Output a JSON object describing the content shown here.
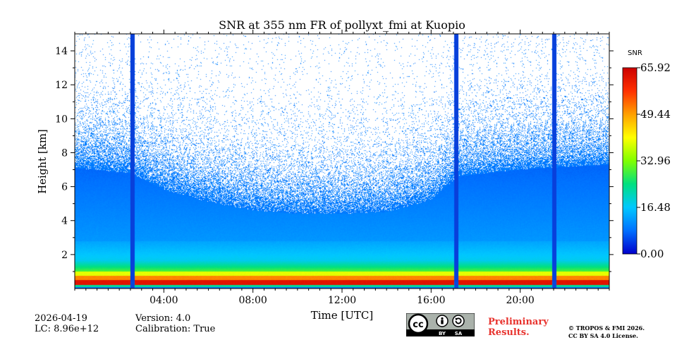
{
  "chart_data": {
    "type": "heatmap",
    "title": "SNR at 355 nm FR of pollyxt_fmi at Kuopio",
    "xlabel": "Time [UTC]",
    "ylabel": "Height [km]",
    "xlim_hours": [
      0,
      24
    ],
    "ylim_km": [
      0,
      15
    ],
    "x_ticks": [
      {
        "hour": 4,
        "label": "04:00"
      },
      {
        "hour": 8,
        "label": "08:00"
      },
      {
        "hour": 12,
        "label": "12:00"
      },
      {
        "hour": 16,
        "label": "16:00"
      },
      {
        "hour": 20,
        "label": "20:00"
      }
    ],
    "y_ticks": [
      {
        "value": 2,
        "label": "2"
      },
      {
        "value": 4,
        "label": "4"
      },
      {
        "value": 6,
        "label": "6"
      },
      {
        "value": 8,
        "label": "8"
      },
      {
        "value": 10,
        "label": "10"
      },
      {
        "value": 12,
        "label": "12"
      },
      {
        "value": 14,
        "label": "14"
      }
    ],
    "colorbar": {
      "label": "SNR",
      "min": 0.0,
      "max": 65.92,
      "ticks": [
        "0.00",
        "16.48",
        "32.96",
        "49.44",
        "65.92"
      ],
      "colors": [
        "#0000cc",
        "#0070ff",
        "#00c8ff",
        "#00e080",
        "#80ff00",
        "#ffff00",
        "#ffa000",
        "#ff3000",
        "#cc0000"
      ]
    },
    "gaps_hours": [
      {
        "start": 2.5,
        "end": 2.68
      },
      {
        "start": 17.05,
        "end": 17.22
      },
      {
        "start": 21.45,
        "end": 21.62
      }
    ],
    "signal_top_km": [
      {
        "hour": 0,
        "km": 8.3
      },
      {
        "hour": 2.5,
        "km": 8.0
      },
      {
        "hour": 4,
        "km": 7.0
      },
      {
        "hour": 6,
        "km": 6.3
      },
      {
        "hour": 8,
        "km": 5.8
      },
      {
        "hour": 10,
        "km": 5.6
      },
      {
        "hour": 12,
        "km": 5.6
      },
      {
        "hour": 14,
        "km": 5.7
      },
      {
        "hour": 16,
        "km": 6.4
      },
      {
        "hour": 17.2,
        "km": 7.8
      },
      {
        "hour": 20,
        "km": 8.2
      },
      {
        "hour": 24,
        "km": 8.5
      }
    ]
  },
  "footer": {
    "date": "2026-04-19",
    "lc": "LC: 8.96e+12",
    "version": "Version: 4.0",
    "calibration": "Calibration: True",
    "preliminary_line1": "Preliminary",
    "preliminary_line2": "Results.",
    "copyright_line1": "© TROPOS & FMI 2026.",
    "copyright_line2": "CC BY SA 4.0 License.",
    "license_badge": {
      "cc": "cc",
      "by": "BY",
      "sa": "SA"
    }
  }
}
